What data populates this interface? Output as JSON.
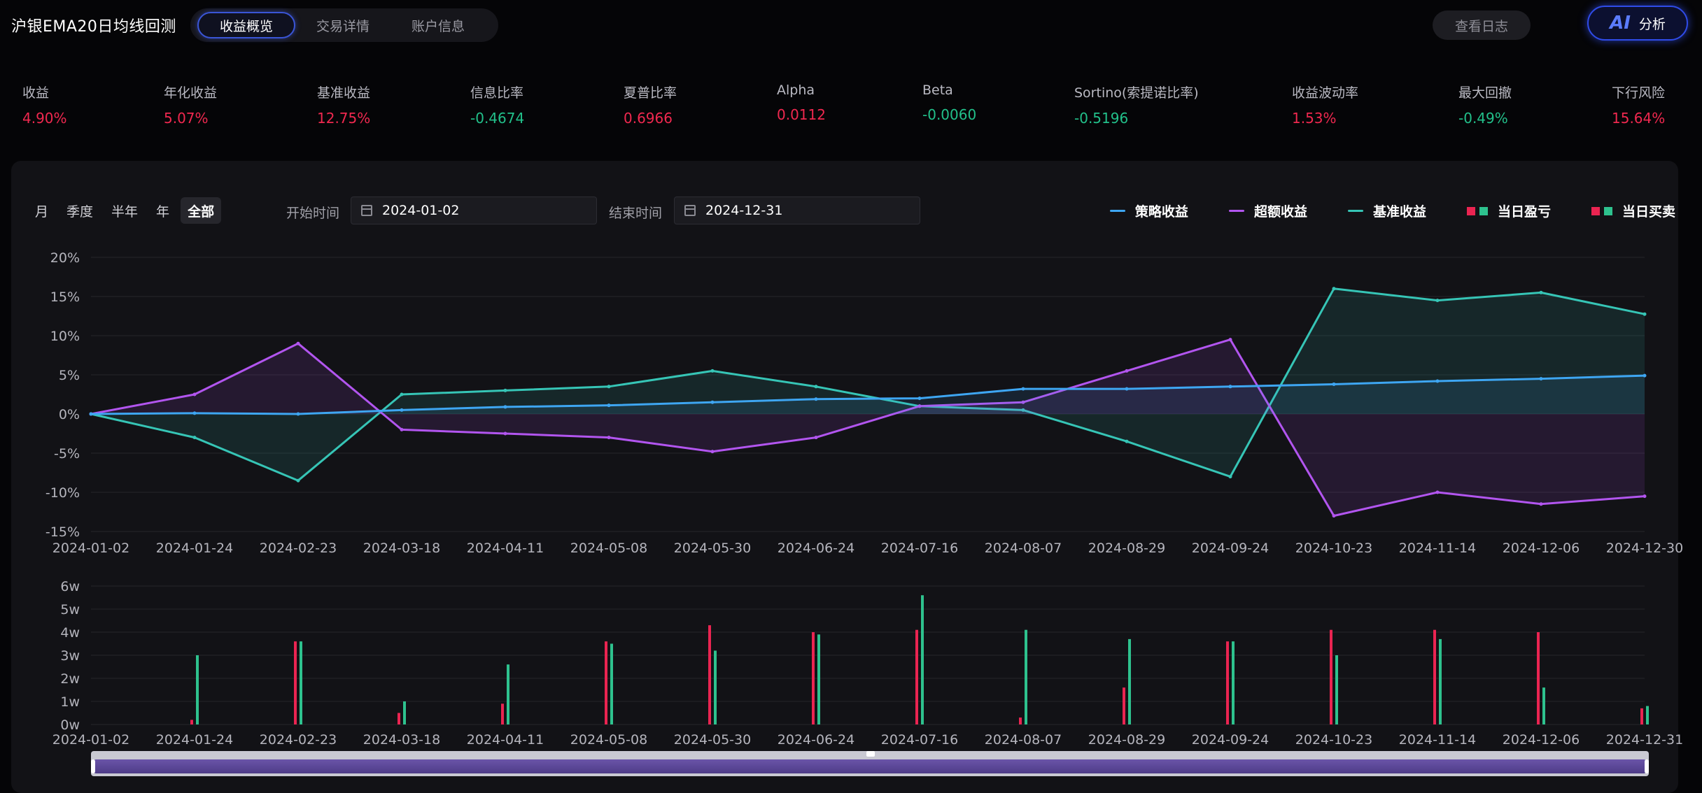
{
  "header": {
    "title": "沪银EMA20日均线回测",
    "tabs": [
      {
        "label": "收益概览",
        "active": true
      },
      {
        "label": "交易详情",
        "active": false
      },
      {
        "label": "账户信息",
        "active": false
      }
    ],
    "log_button": "查看日志",
    "ai_button": {
      "mark": "AI",
      "label": "分析"
    }
  },
  "metrics": [
    {
      "label": "收益",
      "value": "4.90%",
      "tone": "pos"
    },
    {
      "label": "年化收益",
      "value": "5.07%",
      "tone": "pos"
    },
    {
      "label": "基准收益",
      "value": "12.75%",
      "tone": "pos"
    },
    {
      "label": "信息比率",
      "value": "-0.4674",
      "tone": "neg"
    },
    {
      "label": "夏普比率",
      "value": "0.6966",
      "tone": "pos"
    },
    {
      "label": "Alpha",
      "value": "0.0112",
      "tone": "pos"
    },
    {
      "label": "Beta",
      "value": "-0.0060",
      "tone": "neg"
    },
    {
      "label": "Sortino(索提诺比率)",
      "value": "-0.5196",
      "tone": "neg"
    },
    {
      "label": "收益波动率",
      "value": "1.53%",
      "tone": "pos"
    },
    {
      "label": "最大回撤",
      "value": "-0.49%",
      "tone": "neg"
    },
    {
      "label": "下行风险",
      "value": "15.64%",
      "tone": "pos"
    }
  ],
  "controls": {
    "periods": [
      {
        "label": "月",
        "active": false
      },
      {
        "label": "季度",
        "active": false
      },
      {
        "label": "半年",
        "active": false
      },
      {
        "label": "年",
        "active": false
      },
      {
        "label": "全部",
        "active": true
      }
    ],
    "start_label": "开始时间",
    "start_value": "2024-01-02",
    "end_label": "结束时间",
    "end_value": "2024-12-31"
  },
  "legend": [
    {
      "label": "策略收益",
      "kind": "line",
      "color": "#3ea6f2"
    },
    {
      "label": "超额收益",
      "kind": "line",
      "color": "#b255ef"
    },
    {
      "label": "基准收益",
      "kind": "line",
      "color": "#36c5b6"
    },
    {
      "label": "当日盈亏",
      "kind": "squares",
      "colors": [
        "#ea2451",
        "#2ec28e"
      ]
    },
    {
      "label": "当日买卖",
      "kind": "squares",
      "colors": [
        "#ea2451",
        "#2ec28e"
      ]
    }
  ],
  "colors": {
    "strategy": "#3ea6f2",
    "excess": "#b255ef",
    "benchmark": "#36c5b6",
    "up": "#ea2451",
    "down": "#2ec28e"
  },
  "chart_data": [
    {
      "type": "line",
      "x": [
        "2024-01-02",
        "2024-01-24",
        "2024-02-23",
        "2024-03-18",
        "2024-04-11",
        "2024-05-08",
        "2024-05-30",
        "2024-06-24",
        "2024-07-16",
        "2024-08-07",
        "2024-08-29",
        "2024-09-24",
        "2024-10-23",
        "2024-11-14",
        "2024-12-06",
        "2024-12-30"
      ],
      "ylim": [
        -15,
        20
      ],
      "yticks": [
        20,
        15,
        10,
        5,
        0,
        -5,
        -10,
        -15
      ],
      "ytick_labels": [
        "20%",
        "15%",
        "10%",
        "5%",
        "0%",
        "-5%",
        "-10%",
        "-15%"
      ],
      "series": [
        {
          "name": "策略收益",
          "values": [
            0,
            0.1,
            0,
            0.5,
            0.9,
            1.1,
            1.5,
            1.9,
            2.0,
            3.2,
            3.2,
            3.5,
            3.8,
            4.2,
            4.5,
            4.9
          ]
        },
        {
          "name": "超额收益",
          "values": [
            0,
            2.5,
            9.0,
            -2.0,
            -2.5,
            -3.0,
            -4.8,
            -3.0,
            1.0,
            1.5,
            5.5,
            9.5,
            -13.0,
            -10.0,
            -11.5,
            -10.5
          ]
        },
        {
          "name": "基准收益",
          "values": [
            0,
            -3.0,
            -8.5,
            2.5,
            3.0,
            3.5,
            5.5,
            3.5,
            1.0,
            0.5,
            -3.5,
            -8.0,
            16.0,
            14.5,
            15.5,
            12.75
          ]
        }
      ]
    },
    {
      "type": "bar",
      "x": [
        "2024-01-02",
        "2024-01-24",
        "2024-02-23",
        "2024-03-18",
        "2024-04-11",
        "2024-05-08",
        "2024-05-30",
        "2024-06-24",
        "2024-07-16",
        "2024-08-07",
        "2024-08-29",
        "2024-09-24",
        "2024-10-23",
        "2024-11-14",
        "2024-12-06",
        "2024-12-31"
      ],
      "ylim": [
        0,
        6
      ],
      "yticks": [
        6,
        5,
        4,
        3,
        2,
        1,
        0
      ],
      "ytick_labels": [
        "6w",
        "5w",
        "4w",
        "3w",
        "2w",
        "1w",
        "0w"
      ],
      "series": [
        {
          "name": "当日盈亏",
          "values": [
            0,
            0.2,
            3.6,
            0.5,
            0.9,
            3.6,
            4.3,
            4.0,
            4.1,
            0.3,
            1.6,
            3.6,
            4.1,
            4.1,
            4.0,
            0.7
          ]
        },
        {
          "name": "当日买卖",
          "values": [
            0,
            3.0,
            3.6,
            1.0,
            2.6,
            3.5,
            3.2,
            3.9,
            5.6,
            4.1,
            3.7,
            3.6,
            3.0,
            3.7,
            1.6,
            0.8
          ]
        }
      ]
    }
  ]
}
